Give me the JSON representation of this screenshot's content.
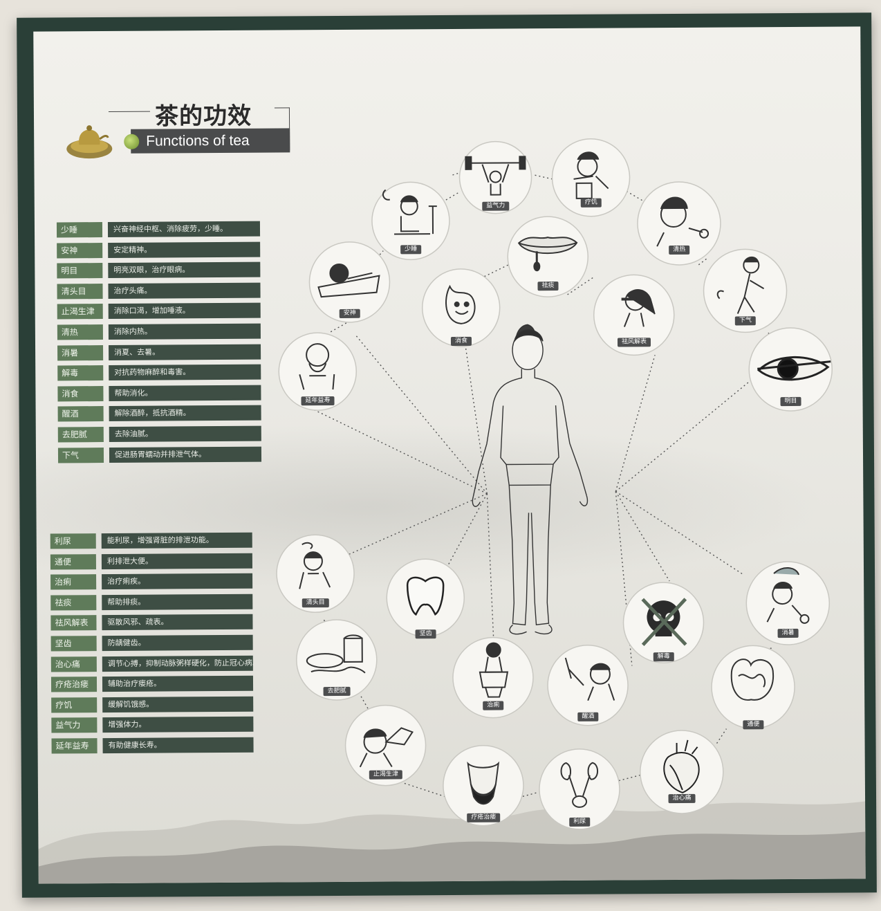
{
  "title": {
    "zh": "茶的功效",
    "en": "Functions of  tea"
  },
  "table_top": [
    {
      "key": "少睡",
      "desc": "兴奋神经中枢、消除疲劳，少睡。"
    },
    {
      "key": "安神",
      "desc": "安定精神。"
    },
    {
      "key": "明目",
      "desc": "明亮双眼，治疗眼病。"
    },
    {
      "key": "清头目",
      "desc": "治疗头痛。"
    },
    {
      "key": "止渴生津",
      "desc": "消除口渴，增加唾液。"
    },
    {
      "key": "清热",
      "desc": "消除内热。"
    },
    {
      "key": "消暑",
      "desc": "消夏、去暑。"
    },
    {
      "key": "解毒",
      "desc": "对抗药物麻醉和毒害。"
    },
    {
      "key": "消食",
      "desc": "帮助消化。"
    },
    {
      "key": "醒酒",
      "desc": "解除酒醉，抵抗酒精。"
    },
    {
      "key": "去肥腻",
      "desc": "去除油腻。"
    },
    {
      "key": "下气",
      "desc": "促进肠胃蠕动并排泄气体。"
    }
  ],
  "table_bottom": [
    {
      "key": "利尿",
      "desc": "能利尿，增强肾脏的排泄功能。"
    },
    {
      "key": "通便",
      "desc": "利排泄大便。"
    },
    {
      "key": "治痢",
      "desc": "治疗痢疾。"
    },
    {
      "key": "祛痰",
      "desc": "帮助排痰。"
    },
    {
      "key": "祛风解表",
      "desc": "驱散风邪、疏表。"
    },
    {
      "key": "坚齿",
      "desc": "防龋健齿。"
    },
    {
      "key": "治心痛",
      "desc": "调节心搏，抑制动脉粥样硬化，防止冠心病。"
    },
    {
      "key": "疗疮治瘘",
      "desc": "辅助治疗瘘疮。"
    },
    {
      "key": "疗饥",
      "desc": "缓解饥饿感。"
    },
    {
      "key": "益气力",
      "desc": "增强体力。"
    },
    {
      "key": "延年益寿",
      "desc": "有助健康长寿。"
    }
  ],
  "nodes": {
    "n1": "益气力",
    "n2": "疗饥",
    "n3": "少睡",
    "n4": "清热",
    "n5": "祛痰",
    "n6": "安神",
    "n7": "消食",
    "n8": "祛风解表",
    "n9": "下气",
    "n10": "延年益寿",
    "n11": "明目",
    "n12": "清头目",
    "n13": "坚齿",
    "n14": "解毒",
    "n15": "消暑",
    "n16": "去肥腻",
    "n17": "治痢",
    "n18": "醒酒",
    "n19": "通便",
    "n20": "止渴生津",
    "n21": "疗疮治瘘",
    "n22": "利尿",
    "n23": "治心痛"
  },
  "icons": {
    "n1": "weightlifter-icon",
    "n2": "eating-person-icon",
    "n3": "studying-person-icon",
    "n4": "fevered-person-icon",
    "n5": "lips-icon",
    "n6": "sleeping-person-icon",
    "n7": "stomach-character-icon",
    "n8": "coughing-woman-icon",
    "n9": "bending-man-icon",
    "n10": "old-man-icon",
    "n11": "eye-icon",
    "n12": "dizzy-person-icon",
    "n13": "tooth-icon",
    "n14": "crossed-skull-icon",
    "n15": "sweating-person-icon",
    "n16": "greasy-food-icon",
    "n17": "toilet-person-icon",
    "n18": "drinking-man-icon",
    "n19": "intestines-icon",
    "n20": "drinking-tea-icon",
    "n21": "fistula-icon",
    "n22": "kidneys-icon",
    "n23": "heart-icon"
  },
  "colors": {
    "key_bg": "#5f7b5a",
    "desc_bg": "#3e4e44",
    "frame": "#2a3f37",
    "title_bar": "#4a4b4c"
  }
}
